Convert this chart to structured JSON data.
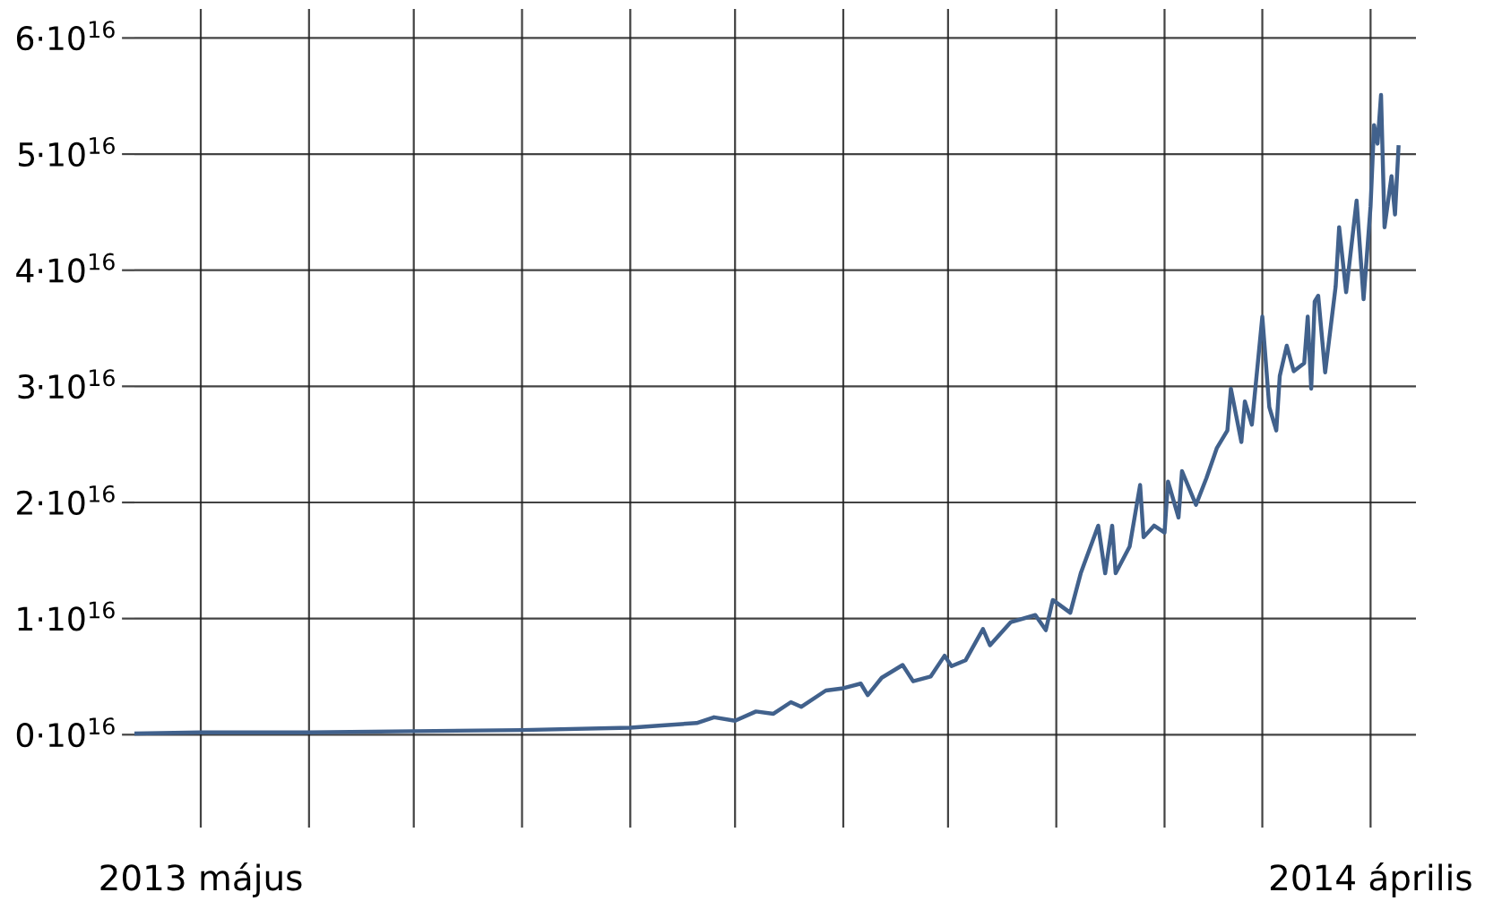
{
  "chart_data": {
    "type": "line",
    "x": [
      "2013-04-12",
      "2013-05-01",
      "2013-06-01",
      "2013-07-01",
      "2013-08-01",
      "2013-09-01",
      "2013-09-10",
      "2013-09-20",
      "2013-09-25",
      "2013-10-01",
      "2013-10-07",
      "2013-10-12",
      "2013-10-17",
      "2013-10-20",
      "2013-10-27",
      "2013-11-01",
      "2013-11-06",
      "2013-11-08",
      "2013-11-12",
      "2013-11-18",
      "2013-11-21",
      "2013-11-26",
      "2013-11-30",
      "2013-12-02",
      "2013-12-06",
      "2013-12-11",
      "2013-12-13",
      "2013-12-19",
      "2013-12-26",
      "2013-12-29",
      "2013-12-31",
      "2014-01-05",
      "2014-01-08",
      "2014-01-13",
      "2014-01-15",
      "2014-01-17",
      "2014-01-18",
      "2014-01-22",
      "2014-01-25",
      "2014-01-26",
      "2014-01-29",
      "2014-02-01",
      "2014-02-02",
      "2014-02-05",
      "2014-02-06",
      "2014-02-10",
      "2014-02-13",
      "2014-02-16",
      "2014-02-19",
      "2014-02-20",
      "2014-02-23",
      "2014-02-24",
      "2014-02-26",
      "2014-03-01",
      "2014-03-03",
      "2014-03-05",
      "2014-03-06",
      "2014-03-08",
      "2014-03-10",
      "2014-03-13",
      "2014-03-14",
      "2014-03-15",
      "2014-03-16",
      "2014-03-17",
      "2014-03-19",
      "2014-03-22",
      "2014-03-23",
      "2014-03-25",
      "2014-03-28",
      "2014-03-30",
      "2014-04-01",
      "2014-04-02",
      "2014-04-03",
      "2014-04-04",
      "2014-04-05",
      "2014-04-07",
      "2014-04-08",
      "2014-04-09"
    ],
    "series": [
      {
        "color": "#41618c",
        "values": [
          100000000000000.0,
          200000000000000.0,
          200000000000000.0,
          300000000000000.0,
          400000000000000.0,
          600000000000000.0,
          800000000000000.0,
          1000000000000000.0,
          1500000000000000.0,
          1200000000000000.0,
          2000000000000000.0,
          1800000000000000.0,
          2800000000000000.0,
          2400000000000000.0,
          3800000000000000.0,
          4000000000000000.0,
          4400000000000000.0,
          3400000000000000.0,
          4900000000000000.0,
          6000000000000000.0,
          4600000000000000.0,
          5000000000000000.0,
          6800000000000000.0,
          5900000000000000.0,
          6400000000000000.0,
          9100000000000000.0,
          7700000000000000.0,
          9700000000000000.0,
          1.03e+16,
          9000000000000000.0,
          1.16e+16,
          1.05e+16,
          1.39e+16,
          1.8e+16,
          1.39e+16,
          1.8e+16,
          1.39e+16,
          1.62e+16,
          2.15e+16,
          1.7e+16,
          1.8e+16,
          1.74e+16,
          2.18e+16,
          1.87e+16,
          2.27e+16,
          1.98e+16,
          2.21e+16,
          2.47e+16,
          2.62e+16,
          2.98e+16,
          2.52e+16,
          2.87e+16,
          2.67e+16,
          3.6e+16,
          2.82e+16,
          2.62e+16,
          3.09e+16,
          3.35e+16,
          3.13e+16,
          3.2e+16,
          3.6e+16,
          2.98e+16,
          3.73e+16,
          3.78e+16,
          3.12e+16,
          3.86e+16,
          4.37e+16,
          3.81e+16,
          4.6e+16,
          3.75e+16,
          4.55e+16,
          5.25e+16,
          5.09e+16,
          5.51e+16,
          4.37e+16,
          4.81e+16,
          4.48e+16,
          5.06e+16
        ]
      }
    ],
    "xlim": [
      "2013-04-12",
      "2014-04-14"
    ],
    "xticks": [
      {
        "value": "2013-05-01",
        "label": "2013 május"
      },
      {
        "value": "2013-06-01",
        "label": null
      },
      {
        "value": "2013-07-01",
        "label": null
      },
      {
        "value": "2013-08-01",
        "label": null
      },
      {
        "value": "2013-09-01",
        "label": null
      },
      {
        "value": "2013-10-01",
        "label": null
      },
      {
        "value": "2013-11-01",
        "label": null
      },
      {
        "value": "2013-12-01",
        "label": null
      },
      {
        "value": "2014-01-01",
        "label": null
      },
      {
        "value": "2014-02-01",
        "label": null
      },
      {
        "value": "2014-03-01",
        "label": null
      },
      {
        "value": "2014-04-01",
        "label": "2014 április"
      }
    ],
    "ylim": [
      -8000000000000000.0,
      6.25e+16
    ],
    "yticks": [
      {
        "value": 0,
        "label": "0·10$^{16}$"
      },
      {
        "value": 1e+16,
        "label": "1·10$^{16}$"
      },
      {
        "value": 2e+16,
        "label": "2·10$^{16}$"
      },
      {
        "value": 3e+16,
        "label": "3·10$^{16}$"
      },
      {
        "value": 4e+16,
        "label": "4·10$^{16}$"
      },
      {
        "value": 5e+16,
        "label": "5·10$^{16}$"
      },
      {
        "value": 6e+16,
        "label": "6·10$^{16}$"
      }
    ],
    "grid": true,
    "line_style": "solid"
  }
}
